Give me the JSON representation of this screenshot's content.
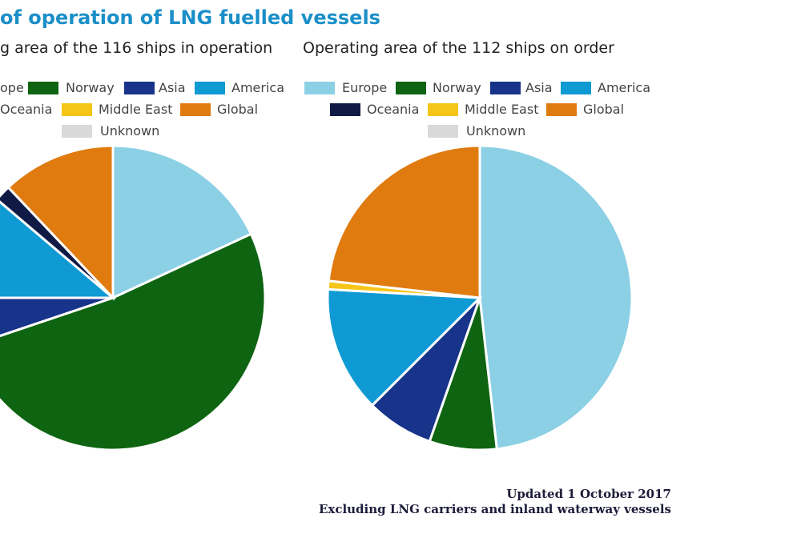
{
  "title": "of operation of LNG fuelled vessels",
  "colors": {
    "Europe": "#8cd0e5",
    "Norway": "#0e6411",
    "Asia": "#17338a",
    "America": "#0f9ad3",
    "Oceania": "#101a45",
    "Middle East": "#f5c518",
    "Global": "#e07b10",
    "Unknown": "#d9d9d9"
  },
  "chart_data": [
    {
      "type": "pie",
      "title": "g area of the 116 ships in operation",
      "legend_labels": [
        "ope",
        "Norway",
        "Asia",
        "America",
        "Oceania",
        "Middle East",
        "Global",
        "Unknown"
      ],
      "slices": [
        {
          "label": "Europe",
          "value": 21
        },
        {
          "label": "Norway",
          "value": 60
        },
        {
          "label": "Asia",
          "value": 6
        },
        {
          "label": "America",
          "value": 13
        },
        {
          "label": "Oceania",
          "value": 2
        },
        {
          "label": "Middle East",
          "value": 0
        },
        {
          "label": "Global",
          "value": 14
        },
        {
          "label": "Unknown",
          "value": 0
        }
      ]
    },
    {
      "type": "pie",
      "title": "Operating area of the 112 ships on order",
      "legend_labels": [
        "Europe",
        "Norway",
        "Asia",
        "America",
        "Oceania",
        "Middle East",
        "Global",
        "Unknown"
      ],
      "slices": [
        {
          "label": "Europe",
          "value": 54
        },
        {
          "label": "Norway",
          "value": 8
        },
        {
          "label": "Asia",
          "value": 8
        },
        {
          "label": "America",
          "value": 15
        },
        {
          "label": "Oceania",
          "value": 0
        },
        {
          "label": "Middle East",
          "value": 1
        },
        {
          "label": "Global",
          "value": 26
        },
        {
          "label": "Unknown",
          "value": 0
        }
      ]
    }
  ],
  "footer": {
    "line1": "Updated 1 October 2017",
    "line2": "Excluding  LNG carriers and inland  waterway vessels"
  }
}
